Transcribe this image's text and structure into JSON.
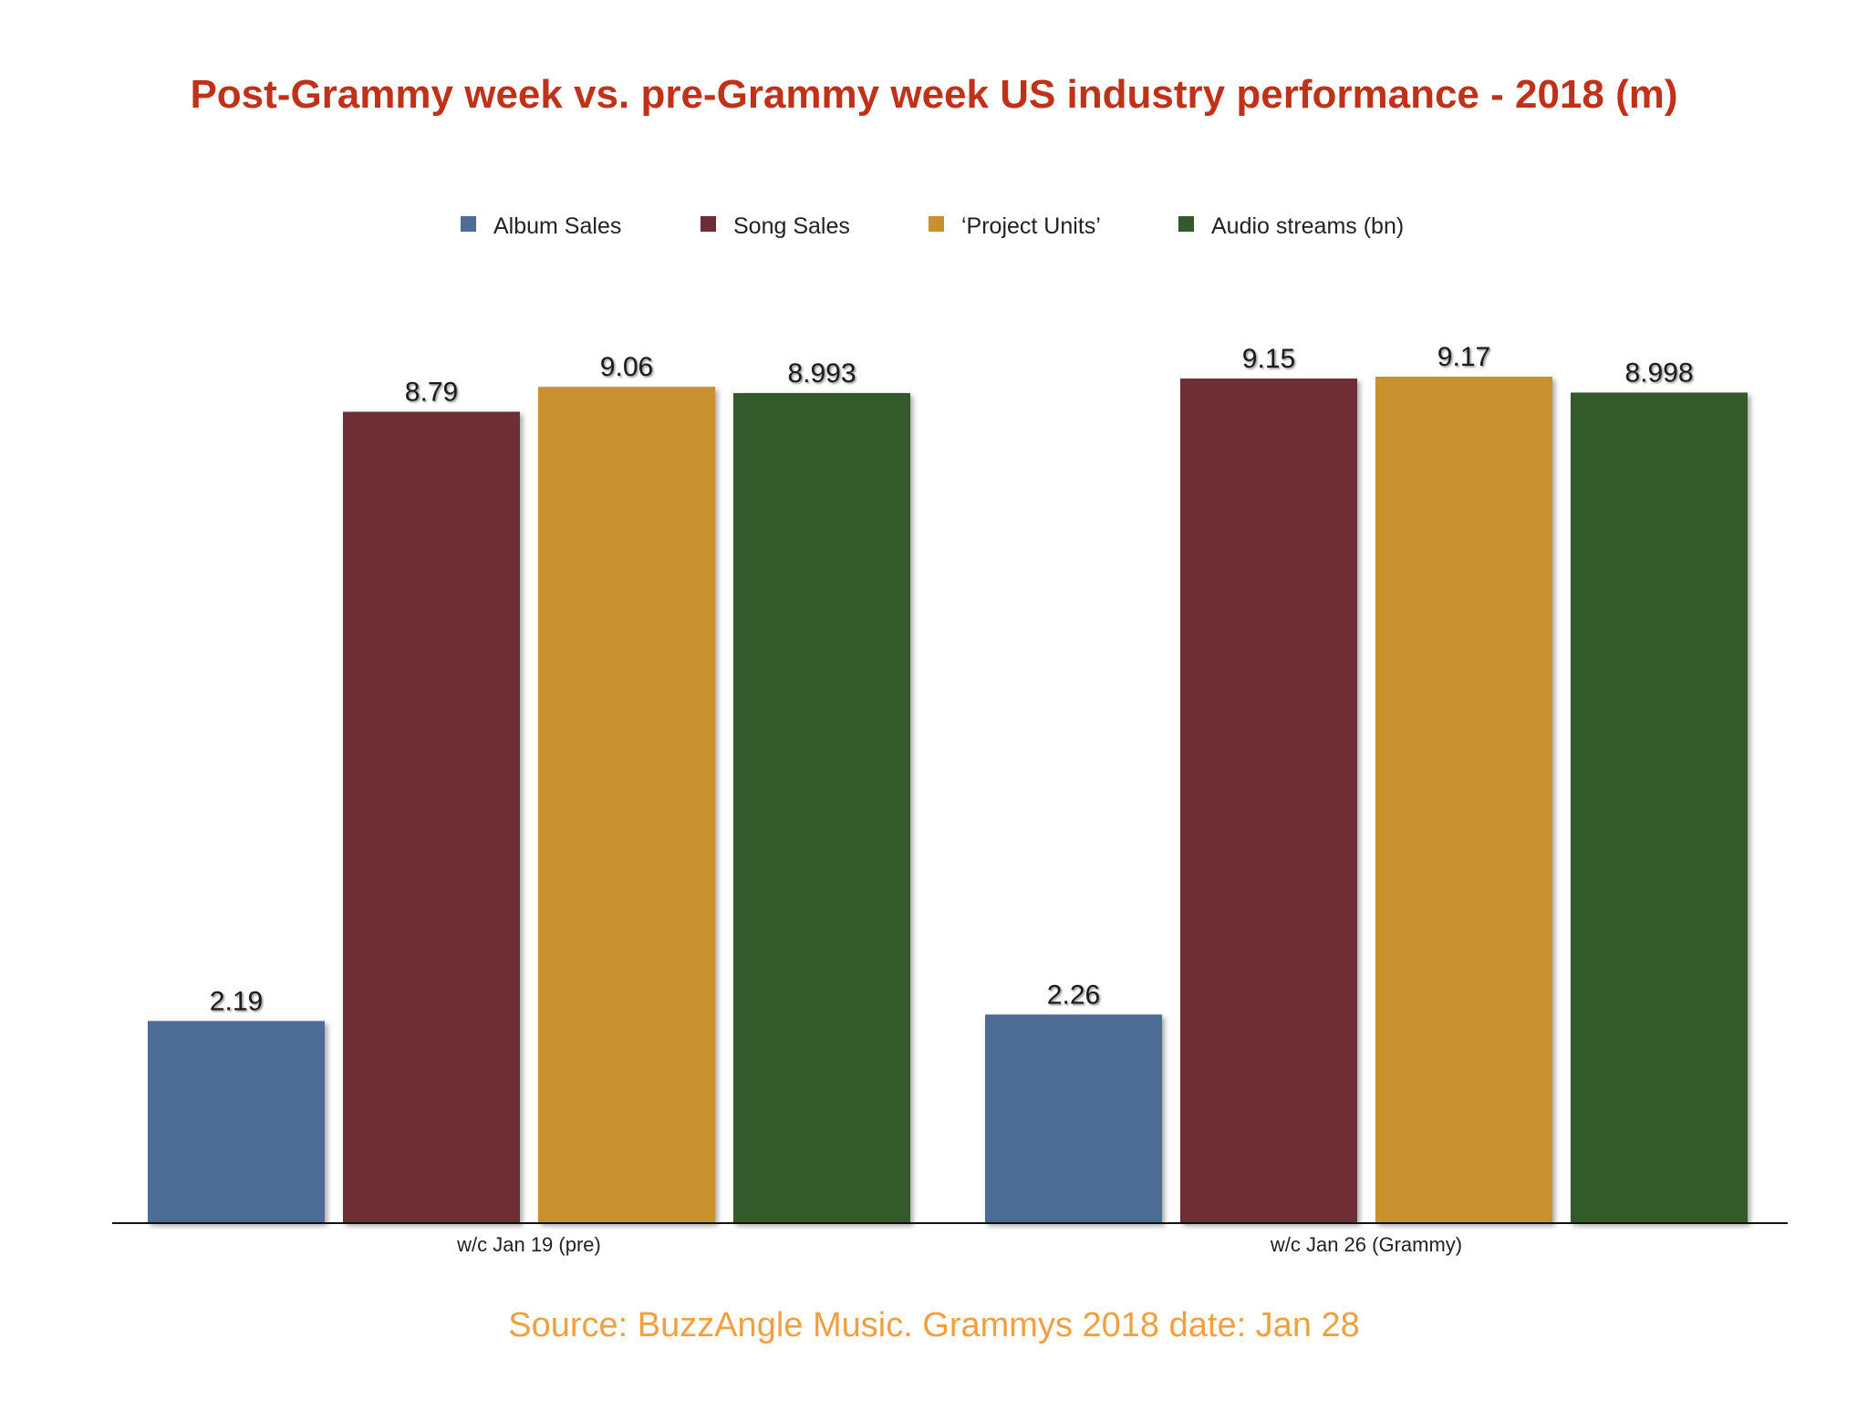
{
  "chart_data": {
    "type": "bar",
    "title": "Post-Grammy week vs. pre-Grammy week US industry performance - 2018 (m)",
    "categories": [
      "w/c Jan 19 (pre)",
      "w/c Jan 26 (Grammy)"
    ],
    "series": [
      {
        "name": "Album Sales",
        "values": [
          2.19,
          2.26
        ],
        "labels": [
          "2.19",
          "2.26"
        ],
        "color": "#4e6c95"
      },
      {
        "name": "Song Sales",
        "values": [
          8.79,
          9.15
        ],
        "labels": [
          "8.79",
          "9.15"
        ],
        "color": "#6e2d34"
      },
      {
        "name": "‘Project Units’",
        "values": [
          9.06,
          9.17
        ],
        "labels": [
          "9.06",
          "9.17"
        ],
        "color": "#c8902f"
      },
      {
        "name": "Audio streams (bn)",
        "values": [
          8.993,
          8.998
        ],
        "labels": [
          "8.993",
          "8.998"
        ],
        "color": "#335a2b"
      }
    ],
    "ylim": [
      0,
      9.17
    ],
    "grid": false,
    "legend_position": "top-center",
    "source": "Source: BuzzAngle Music. Grammys 2018 date: Jan 28",
    "title_color": "#c0311a",
    "source_color": "#f0a040"
  }
}
